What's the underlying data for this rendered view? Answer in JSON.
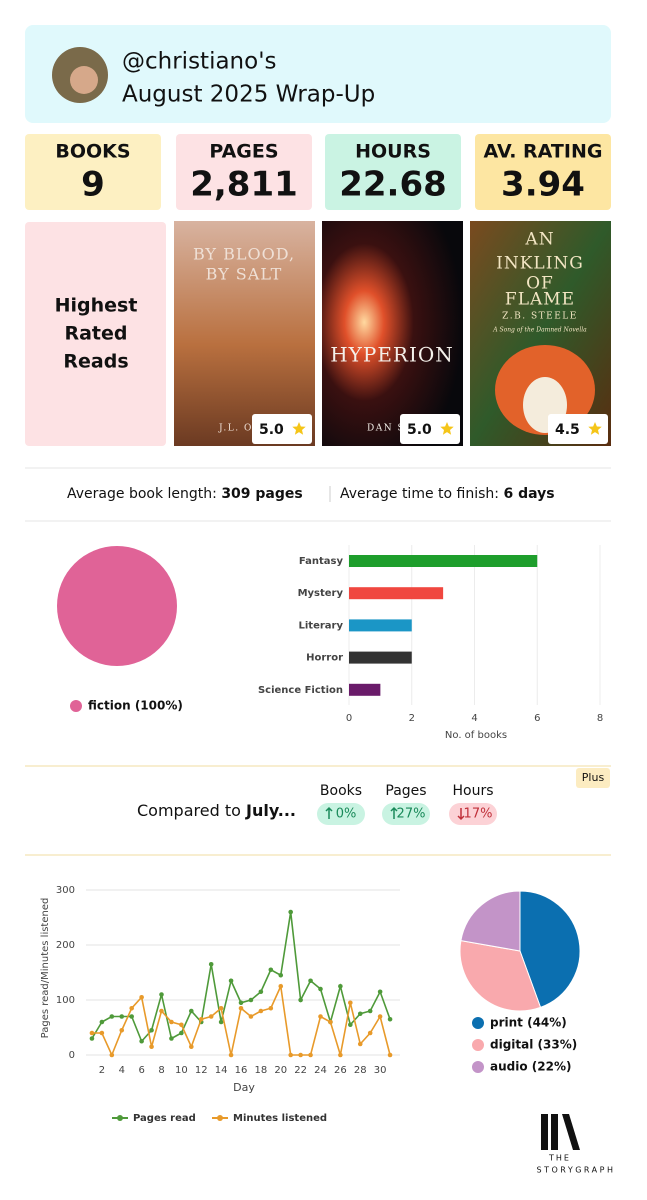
{
  "header": {
    "username": "@christiano's",
    "subtitle": "August 2025 Wrap-Up"
  },
  "stats": [
    {
      "label": "BOOKS",
      "value": "9",
      "color": "#fdf0c2"
    },
    {
      "label": "PAGES",
      "value": "2,811",
      "color": "#fde2e4"
    },
    {
      "label": "HOURS",
      "value": "22.68",
      "color": "#caf3e3"
    },
    {
      "label": "AV. RATING",
      "value": "3.94",
      "color": "#fde6a2"
    }
  ],
  "highest_rated": {
    "title": [
      "Highest",
      "Rated",
      "Reads"
    ],
    "books": [
      {
        "cover_lines": [
          "BY BLOOD,",
          "BY SALT"
        ],
        "author": "J.L. O",
        "rating": "5.0"
      },
      {
        "cover_lines": [
          "HYPERION"
        ],
        "author": "DAN S",
        "rating": "5.0"
      },
      {
        "cover_lines": [
          "AN",
          "INKLING",
          "OF",
          "FLAME"
        ],
        "author": "Z.B. STEELE",
        "tagline": "A Song of the Damned Novella",
        "rating": "4.5"
      }
    ]
  },
  "averages": {
    "length_label": "Average book length:",
    "length": "309 pages",
    "time_label": "Average time to finish:",
    "time": "6 days"
  },
  "fiction_pie": {
    "type": "pie",
    "categories": [
      "fiction (100%)"
    ],
    "values": [
      100
    ],
    "colors": [
      "#e06397"
    ]
  },
  "genre_chart": {
    "type": "bar",
    "orientation": "horizontal",
    "categories": [
      "Fantasy",
      "Mystery",
      "Literary",
      "Horror",
      "Science Fiction"
    ],
    "values": [
      6,
      3,
      2,
      2,
      1
    ],
    "colors": [
      "#1e9e2c",
      "#f0473f",
      "#1b96c6",
      "#333333",
      "#6a1b6a"
    ],
    "xlim": [
      0,
      8
    ],
    "xticks": [
      0,
      2,
      4,
      6,
      8
    ],
    "xlabel": "No. of books",
    "grid": true
  },
  "comparison": {
    "badge": "Plus",
    "label": "Compared to",
    "month": "July...",
    "items": [
      {
        "name": "Books",
        "change": "0%",
        "trend": "up"
      },
      {
        "name": "Pages",
        "change": "27%",
        "trend": "up"
      },
      {
        "name": "Hours",
        "change": "17%",
        "trend": "down"
      }
    ]
  },
  "daily_chart": {
    "type": "line",
    "x": [
      1,
      2,
      3,
      4,
      5,
      6,
      7,
      8,
      9,
      10,
      11,
      12,
      13,
      14,
      15,
      16,
      17,
      18,
      19,
      20,
      21,
      22,
      23,
      24,
      25,
      26,
      27,
      28,
      29,
      30,
      31
    ],
    "series": [
      {
        "name": "Pages read",
        "color": "#4f9a3a",
        "values": [
          30,
          60,
          70,
          70,
          70,
          25,
          45,
          110,
          30,
          40,
          80,
          60,
          165,
          60,
          135,
          95,
          100,
          115,
          155,
          145,
          260,
          100,
          135,
          120,
          60,
          125,
          55,
          75,
          80,
          115,
          65
        ]
      },
      {
        "name": "Minutes listened",
        "color": "#e89a2a",
        "values": [
          40,
          40,
          0,
          45,
          85,
          105,
          15,
          80,
          60,
          55,
          15,
          65,
          70,
          85,
          0,
          85,
          70,
          80,
          85,
          125,
          0,
          0,
          0,
          70,
          60,
          0,
          95,
          20,
          40,
          70,
          0
        ]
      }
    ],
    "xlim": [
      0,
      32
    ],
    "xticks": [
      2,
      4,
      6,
      8,
      10,
      12,
      14,
      16,
      18,
      20,
      22,
      24,
      26,
      28,
      30
    ],
    "ylim": [
      0,
      300
    ],
    "yticks": [
      0,
      100,
      200,
      300
    ],
    "xlabel": "Day",
    "ylabel": "Pages read/Minutes listened",
    "grid": true
  },
  "format_pie": {
    "type": "pie",
    "categories": [
      "print (44%)",
      "digital (33%)",
      "audio (22%)"
    ],
    "values": [
      44,
      33,
      22
    ],
    "colors": [
      "#0b6fb0",
      "#f9a9ad",
      "#c394c8"
    ]
  },
  "footer": {
    "logo_top": "THE",
    "logo_bottom": "STORYGRAPH"
  }
}
